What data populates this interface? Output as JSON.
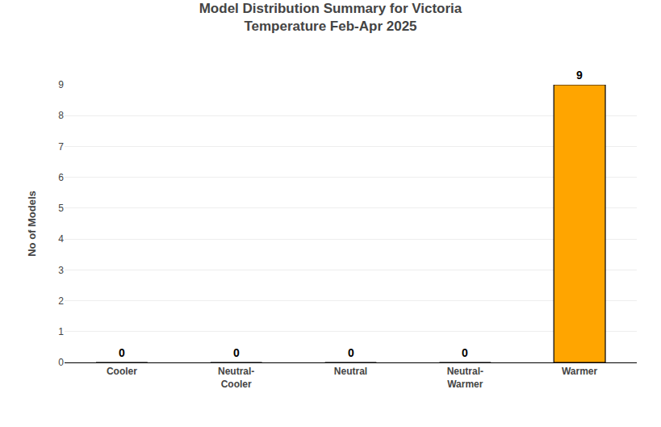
{
  "chart_data": {
    "type": "bar",
    "title": "Model Distribution Summary for Victoria\nTemperature Feb-Apr 2025",
    "categories": [
      "Cooler",
      "Neutral-\nCooler",
      "Neutral",
      "Neutral-\nWarmer",
      "Warmer"
    ],
    "values": [
      0,
      0,
      0,
      0,
      9
    ],
    "color": "#FFA500",
    "ylabel": "No of Models",
    "ylim": [
      0,
      9
    ],
    "yticks": [
      0,
      1,
      2,
      3,
      4,
      5,
      6,
      7,
      8,
      9
    ],
    "grid": true,
    "data_labels": true
  }
}
